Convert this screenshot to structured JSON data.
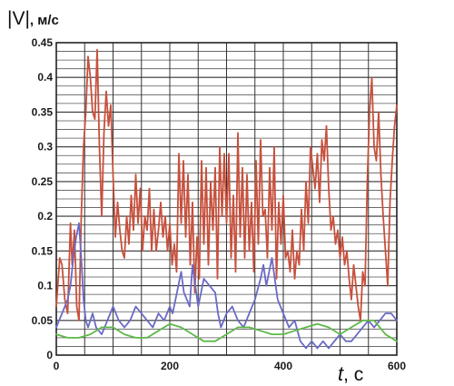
{
  "chart_data": {
    "type": "line",
    "ylabel": "|V|, м/с",
    "ylabel_main": "|V|",
    "ylabel_unit": ", м/с",
    "xlabel": "t, c",
    "xlabel_main": "t",
    "xlabel_unit": ", c",
    "xlim": [
      0,
      600
    ],
    "ylim": [
      0,
      0.45
    ],
    "x_ticks": [
      "0",
      "200",
      "400",
      "600"
    ],
    "y_ticks": [
      "0",
      "0.05",
      "0.1",
      "0.15",
      "0.2",
      "0.25",
      "0.3",
      "0.35",
      "0.4",
      "0.45"
    ],
    "grid": true,
    "series": [
      {
        "color": "#c8503c",
        "x": [
          0,
          6,
          10,
          15,
          20,
          25,
          28,
          32,
          36,
          40,
          44,
          48,
          52,
          56,
          60,
          64,
          68,
          72,
          76,
          80,
          84,
          88,
          92,
          96,
          100,
          104,
          108,
          112,
          116,
          120,
          124,
          128,
          132,
          136,
          140,
          144,
          148,
          152,
          156,
          160,
          164,
          168,
          172,
          176,
          180,
          184,
          188,
          192,
          196,
          200,
          204,
          208,
          212,
          216,
          220,
          224,
          228,
          232,
          236,
          240,
          244,
          248,
          252,
          256,
          260,
          264,
          268,
          272,
          276,
          280,
          284,
          288,
          292,
          296,
          300,
          304,
          308,
          312,
          316,
          320,
          324,
          328,
          332,
          336,
          340,
          344,
          348,
          352,
          356,
          360,
          364,
          368,
          372,
          376,
          380,
          384,
          388,
          392,
          396,
          400,
          404,
          408,
          412,
          416,
          420,
          424,
          428,
          432,
          436,
          440,
          444,
          448,
          452,
          456,
          460,
          464,
          468,
          472,
          476,
          480,
          484,
          488,
          492,
          496,
          500,
          504,
          508,
          512,
          516,
          520,
          524,
          528,
          532,
          536,
          540,
          544,
          548,
          552,
          556,
          560,
          564,
          568,
          572,
          576,
          580,
          584,
          588,
          592,
          596,
          600
        ],
        "values": [
          0.07,
          0.14,
          0.13,
          0.08,
          0.06,
          0.19,
          0.13,
          0.18,
          0.07,
          0.05,
          0.2,
          0.3,
          0.35,
          0.43,
          0.4,
          0.35,
          0.34,
          0.44,
          0.3,
          0.2,
          0.32,
          0.38,
          0.33,
          0.36,
          0.26,
          0.17,
          0.22,
          0.18,
          0.15,
          0.14,
          0.2,
          0.16,
          0.23,
          0.18,
          0.26,
          0.19,
          0.24,
          0.15,
          0.2,
          0.18,
          0.24,
          0.15,
          0.21,
          0.15,
          0.18,
          0.22,
          0.17,
          0.2,
          0.15,
          0.19,
          0.13,
          0.16,
          0.12,
          0.29,
          0.19,
          0.28,
          0.17,
          0.26,
          0.13,
          0.22,
          0.09,
          0.17,
          0.11,
          0.28,
          0.16,
          0.27,
          0.13,
          0.25,
          0.18,
          0.27,
          0.11,
          0.3,
          0.2,
          0.29,
          0.19,
          0.29,
          0.14,
          0.23,
          0.12,
          0.32,
          0.17,
          0.27,
          0.14,
          0.26,
          0.15,
          0.22,
          0.12,
          0.28,
          0.16,
          0.31,
          0.2,
          0.21,
          0.14,
          0.27,
          0.18,
          0.3,
          0.11,
          0.22,
          0.16,
          0.23,
          0.14,
          0.15,
          0.12,
          0.18,
          0.11,
          0.15,
          0.13,
          0.21,
          0.15,
          0.25,
          0.19,
          0.3,
          0.27,
          0.24,
          0.29,
          0.22,
          0.31,
          0.28,
          0.33,
          0.24,
          0.18,
          0.2,
          0.16,
          0.18,
          0.14,
          0.17,
          0.13,
          0.15,
          0.11,
          0.08,
          0.13,
          0.1,
          0.07,
          0.05,
          0.12,
          0.1,
          0.25,
          0.35,
          0.4,
          0.3,
          0.28,
          0.35,
          0.26,
          0.2,
          0.15,
          0.1,
          0.22,
          0.28,
          0.33,
          0.36
        ]
      },
      {
        "color": "#6a6ac8",
        "x": [
          0,
          5,
          10,
          15,
          20,
          25,
          30,
          35,
          40,
          44,
          48,
          52,
          56,
          60,
          64,
          70,
          80,
          90,
          100,
          110,
          120,
          130,
          140,
          150,
          160,
          170,
          180,
          190,
          200,
          205,
          210,
          215,
          220,
          225,
          230,
          235,
          240,
          245,
          250,
          255,
          260,
          270,
          280,
          285,
          290,
          300,
          310,
          320,
          330,
          340,
          350,
          360,
          365,
          370,
          375,
          380,
          385,
          390,
          400,
          410,
          420,
          430,
          440,
          450,
          460,
          470,
          480,
          490,
          500,
          510,
          520,
          530,
          540,
          550,
          560,
          570,
          580,
          590,
          600
        ],
        "values": [
          0.04,
          0.05,
          0.06,
          0.07,
          0.08,
          0.1,
          0.14,
          0.17,
          0.19,
          0.14,
          0.08,
          0.05,
          0.04,
          0.05,
          0.06,
          0.04,
          0.03,
          0.05,
          0.07,
          0.05,
          0.04,
          0.05,
          0.07,
          0.06,
          0.05,
          0.04,
          0.06,
          0.05,
          0.07,
          0.06,
          0.08,
          0.1,
          0.12,
          0.09,
          0.08,
          0.07,
          0.13,
          0.1,
          0.07,
          0.09,
          0.11,
          0.1,
          0.09,
          0.06,
          0.04,
          0.06,
          0.07,
          0.05,
          0.04,
          0.06,
          0.08,
          0.11,
          0.13,
          0.1,
          0.12,
          0.14,
          0.11,
          0.08,
          0.06,
          0.04,
          0.05,
          0.02,
          0.01,
          0.02,
          0.01,
          0.02,
          0.01,
          0.02,
          0.03,
          0.02,
          0.02,
          0.03,
          0.04,
          0.05,
          0.04,
          0.05,
          0.06,
          0.06,
          0.05
        ]
      },
      {
        "color": "#5fb848",
        "x": [
          0,
          20,
          40,
          60,
          80,
          100,
          120,
          140,
          160,
          180,
          200,
          220,
          240,
          260,
          280,
          300,
          320,
          340,
          360,
          380,
          400,
          420,
          440,
          460,
          480,
          500,
          520,
          540,
          560,
          580,
          600
        ],
        "values": [
          0.03,
          0.025,
          0.025,
          0.03,
          0.04,
          0.04,
          0.03,
          0.025,
          0.025,
          0.035,
          0.045,
          0.04,
          0.03,
          0.02,
          0.02,
          0.03,
          0.04,
          0.04,
          0.035,
          0.03,
          0.03,
          0.035,
          0.04,
          0.045,
          0.04,
          0.03,
          0.04,
          0.05,
          0.05,
          0.03,
          0.02
        ]
      }
    ]
  }
}
